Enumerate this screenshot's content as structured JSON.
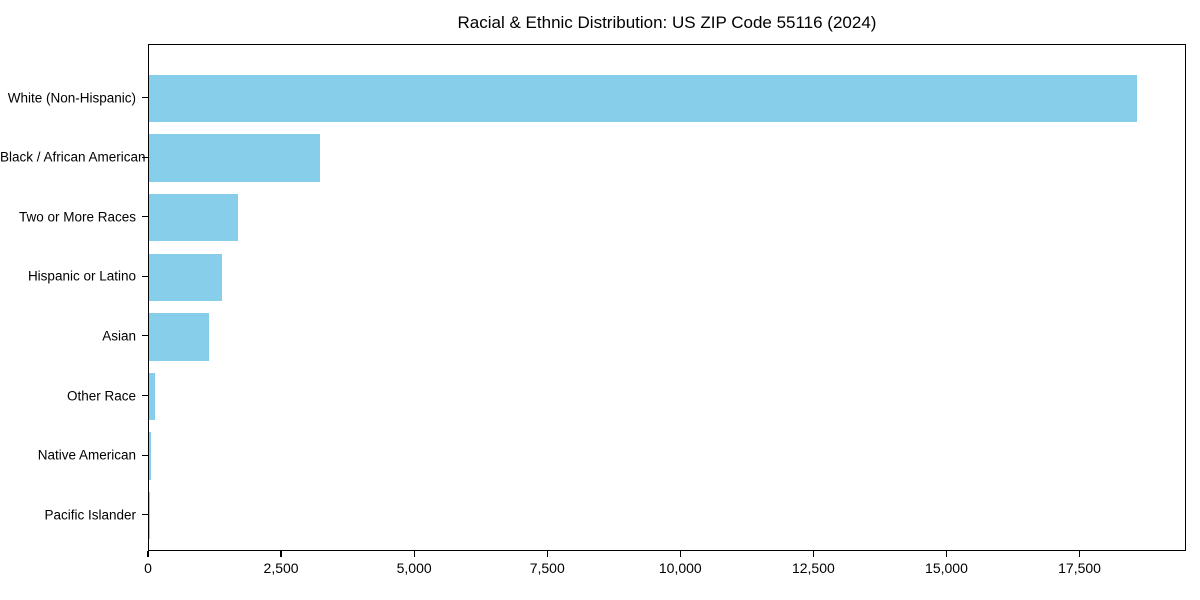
{
  "figure": {
    "background_color": "#ffffff",
    "frame_color": "#000000",
    "text_color": "#000000"
  },
  "chart_data": {
    "type": "bar",
    "orientation": "horizontal",
    "title": "Racial & Ethnic Distribution: US ZIP Code 55116 (2024)",
    "categories": [
      "White (Non-Hispanic)",
      "Black / African American",
      "Two or More Races",
      "Hispanic or Latino",
      "Asian",
      "Other Race",
      "Native American",
      "Pacific Islander"
    ],
    "values": [
      18560,
      3220,
      1670,
      1370,
      1125,
      120,
      30,
      10
    ],
    "bar_color": "#87CEEB",
    "xlabel": "",
    "ylabel": "",
    "xlim": [
      0,
      19500
    ],
    "x_ticks": [
      0,
      2500,
      5000,
      7500,
      10000,
      12500,
      15000,
      17500
    ],
    "x_tick_labels": [
      "0",
      "2,500",
      "5,000",
      "7,500",
      "10,000",
      "12,500",
      "15,000",
      "17,500"
    ],
    "grid": false,
    "legend_position": "none"
  }
}
